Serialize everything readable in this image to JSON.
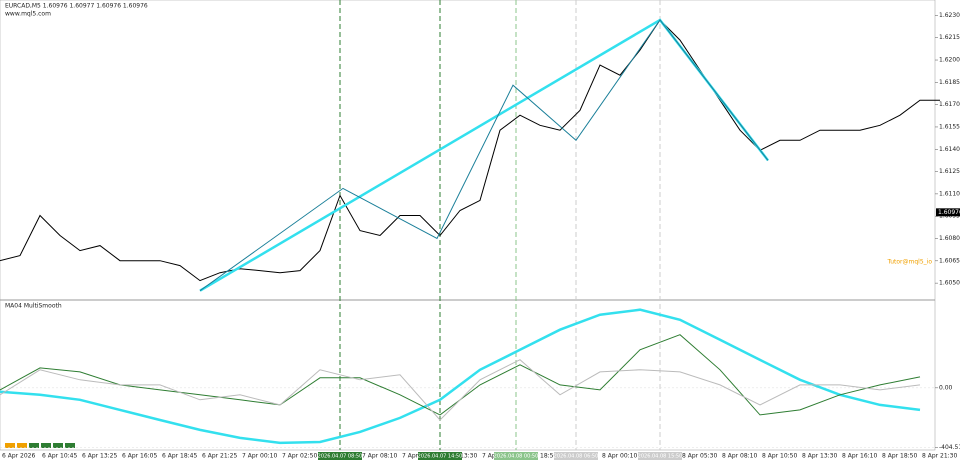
{
  "chart_data": [
    {
      "type": "line",
      "title": "EURCAD,M5  1.60976 1.60977 1.60976 1.60976",
      "subtitle": "www.mql5.com",
      "annotation": "Tutor@mql5_io",
      "current_price": {
        "value": 1.60976,
        "label": "1.60976"
      },
      "series": [
        {
          "name": "EURCAD",
          "color": "#000000",
          "values": [
            1.60651,
            1.60685,
            1.60955,
            1.6082,
            1.60719,
            1.60752,
            1.60651,
            1.60651,
            1.60651,
            1.60618,
            1.60517,
            1.6057,
            1.60597,
            1.60584,
            1.6057,
            1.60584,
            1.60719,
            1.61089,
            1.60853,
            1.6082,
            1.60955,
            1.60955,
            1.6082,
            1.60988,
            1.61056,
            1.61528,
            1.61629,
            1.61561,
            1.61528,
            1.61662,
            1.61966,
            1.61898,
            1.62067,
            1.62269,
            1.62134,
            1.61932,
            1.6173,
            1.61528,
            1.61393,
            1.6146,
            1.6146,
            1.61528,
            1.61528,
            1.61528,
            1.61561,
            1.61629,
            1.6173,
            1.6173
          ]
        },
        {
          "name": "ZigZag major",
          "color": "#33e0ee",
          "x": [
            10,
            33,
            38.4
          ],
          "values": [
            1.60449,
            1.62269,
            1.61325
          ]
        },
        {
          "name": "ZigZag minor",
          "color": "#1a7f99",
          "x": [
            10,
            17.15,
            21.85,
            25.65,
            28.8,
            33,
            38.4
          ],
          "values": [
            1.60449,
            1.61137,
            1.608,
            1.61831,
            1.6146,
            1.62269,
            1.61325
          ]
        }
      ],
      "ylim": [
        1.604,
        1.6237
      ],
      "yticks": [
        {
          "value": 1.605,
          "label": "1.60500"
        },
        {
          "value": 1.6065,
          "label": "1.60650"
        },
        {
          "value": 1.608,
          "label": "1.60800"
        },
        {
          "value": 1.6095,
          "label": "1.60950"
        },
        {
          "value": 1.611,
          "label": "1.61100"
        },
        {
          "value": 1.6125,
          "label": "1.61250"
        },
        {
          "value": 1.614,
          "label": "1.61400"
        },
        {
          "value": 1.6155,
          "label": "1.61550"
        },
        {
          "value": 1.617,
          "label": "1.61700"
        },
        {
          "value": 1.6185,
          "label": "1.61850"
        },
        {
          "value": 1.62,
          "label": "1.62000"
        },
        {
          "value": 1.6215,
          "label": "1.62150"
        },
        {
          "value": 1.623,
          "label": "1.62300"
        }
      ],
      "markers": {
        "x": [
          17,
          22,
          25.8,
          28.8,
          33
        ],
        "colors": [
          "#2e7d32",
          "#2e7d32",
          "#8bc48b",
          "#cccccc",
          "#cccccc"
        ],
        "labels": [
          "2026.04.07 08:50",
          "2026.04.07 14:50",
          "2026.04.08 00:50",
          "2026.04.08 06:50",
          "2026.04.08 15:50"
        ]
      },
      "time_labels": [
        "6 Apr 2026",
        "6 Apr 10:45",
        "6 Apr 13:25",
        "6 Apr 16:05",
        "6 Apr 18:45",
        "6 Apr 21:25",
        "7 Apr 00:10",
        "7 Apr 02:50",
        "7 Apr 05:30",
        "7 Apr 08:10",
        "7 Apr 10:50",
        "7 Apr 13:30",
        "7 Apr 16:10",
        "7 Apr 18:50",
        "7 Apr 21:30",
        "8 Apr 00:10",
        "8 Apr 02:50",
        "8 Apr 05:30",
        "8 Apr 08:10",
        "8 Apr 10:50",
        "8 Apr 13:30",
        "8 Apr 16:10",
        "8 Apr 18:50",
        "8 Apr 21:30"
      ]
    },
    {
      "type": "line",
      "title": "MA04 MultiSmooth",
      "series": [
        {
          "name": "Slow",
          "color": "#33e0ee",
          "values": [
            -27,
            -47,
            -81,
            -149,
            -217,
            -284,
            -338,
            -372,
            -366,
            -298,
            -203,
            -81,
            122,
            257,
            393,
            494,
            528,
            460,
            325,
            189,
            54,
            -47,
            -115,
            -149
          ]
        },
        {
          "name": "Fast",
          "color": "#2e7d32",
          "values": [
            -14,
            135,
            108,
            20,
            -14,
            -47,
            -81,
            -115,
            68,
            68,
            -47,
            -183,
            20,
            156,
            20,
            -14,
            257,
            359,
            122,
            -183,
            -149,
            -47,
            20,
            74
          ]
        },
        {
          "name": "Raw",
          "color": "#bbbbbb",
          "values": [
            -47,
            122,
            54,
            20,
            20,
            -81,
            -47,
            -115,
            122,
            54,
            88,
            -217,
            54,
            190,
            -47,
            108,
            122,
            108,
            20,
            -115,
            20,
            20,
            -14,
            20
          ]
        }
      ],
      "ylim": [
        -420,
        580
      ],
      "yticks": [
        {
          "value": 0,
          "label": "0.00"
        },
        {
          "value": -404.5108,
          "label": "-404.5108"
        }
      ]
    }
  ]
}
